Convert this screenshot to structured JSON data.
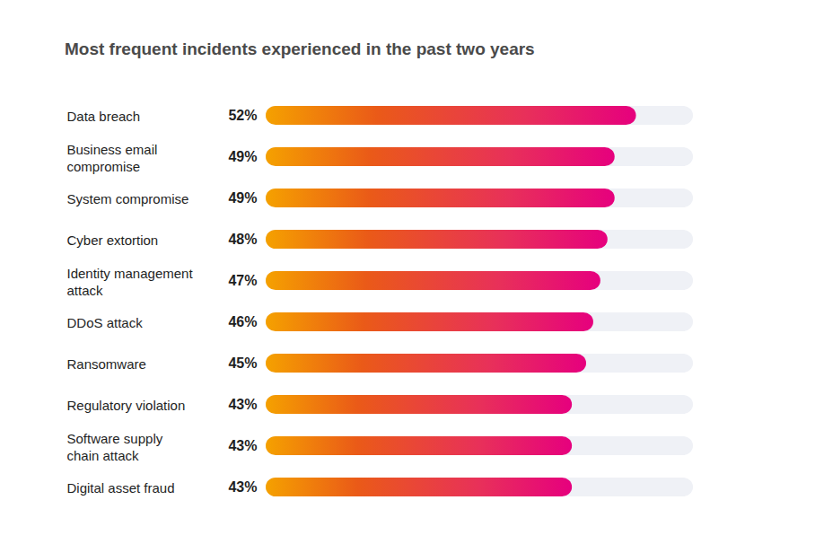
{
  "chart_data": {
    "type": "bar",
    "title": "Most frequent incidents experienced in the past two years",
    "orientation": "horizontal",
    "categories": [
      "Data breach",
      "Business email\ncompromise",
      "System compromise",
      "Cyber extortion",
      "Identity management\nattack",
      "DDoS attack",
      "Ransomware",
      "Regulatory violation",
      "Software supply\nchain attack",
      "Digital asset fraud"
    ],
    "values": [
      52,
      49,
      49,
      48,
      47,
      46,
      45,
      43,
      43,
      43
    ],
    "value_labels": [
      "52%",
      "49%",
      "49%",
      "48%",
      "47%",
      "46%",
      "45%",
      "43%",
      "43%",
      "43%"
    ],
    "color": "#e6007e",
    "xlim": [
      0,
      60
    ],
    "data_labels": true,
    "tick_labels": false,
    "grid": false
  }
}
